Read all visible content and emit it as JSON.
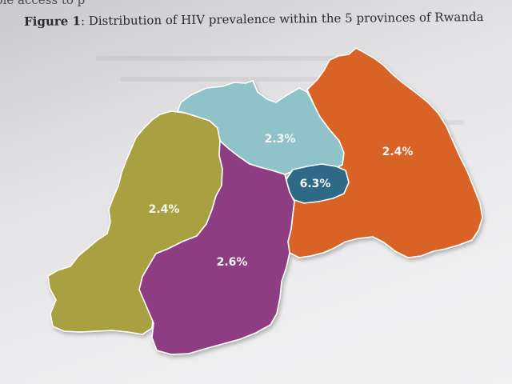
{
  "page": {
    "top_fragment": "ple access to p"
  },
  "figure": {
    "label": "Figure 1",
    "caption": ": Distribution of HIV prevalence within the 5 provinces of Rwanda"
  },
  "map": {
    "regions": [
      {
        "id": "west",
        "value": "2.4%",
        "color": "#a9a043"
      },
      {
        "id": "north",
        "value": "2.3%",
        "color": "#8fc2c9"
      },
      {
        "id": "east",
        "value": "2.4%",
        "color": "#d96427"
      },
      {
        "id": "kigali",
        "value": "6.3%",
        "color": "#2f6a86"
      },
      {
        "id": "south",
        "value": "2.6%",
        "color": "#8f3e82"
      }
    ]
  }
}
